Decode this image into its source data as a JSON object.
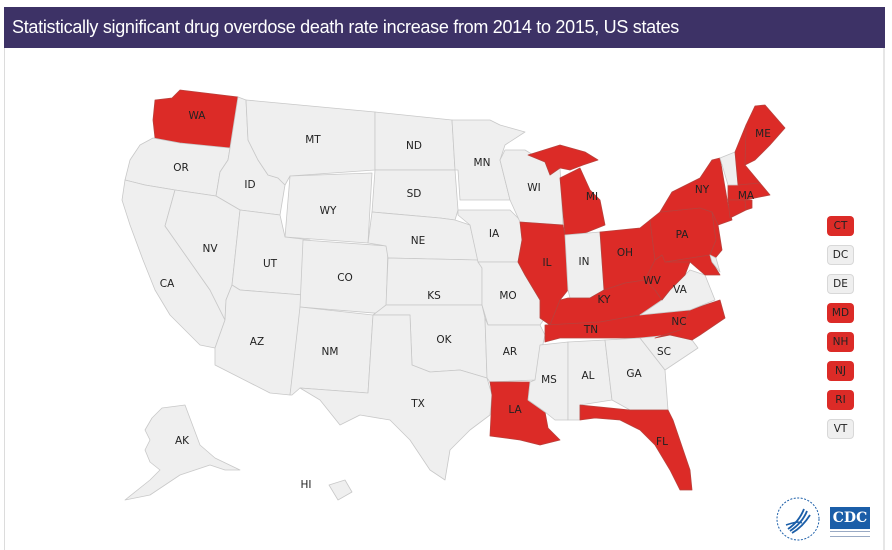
{
  "header": {
    "title": "Statistically significant drug overdose death rate increase from 2014 to 2015, US states"
  },
  "colors": {
    "header_bg": "#3d3266",
    "significant_increase": "#dc2b27",
    "no_significant_increase": "#efefef"
  },
  "map": {
    "states": [
      {
        "abbr": "WA",
        "significant": true
      },
      {
        "abbr": "OR",
        "significant": false
      },
      {
        "abbr": "CA",
        "significant": false
      },
      {
        "abbr": "ID",
        "significant": false
      },
      {
        "abbr": "NV",
        "significant": false
      },
      {
        "abbr": "MT",
        "significant": false
      },
      {
        "abbr": "WY",
        "significant": false
      },
      {
        "abbr": "UT",
        "significant": false
      },
      {
        "abbr": "AZ",
        "significant": false
      },
      {
        "abbr": "CO",
        "significant": false
      },
      {
        "abbr": "NM",
        "significant": false
      },
      {
        "abbr": "ND",
        "significant": false
      },
      {
        "abbr": "SD",
        "significant": false
      },
      {
        "abbr": "NE",
        "significant": false
      },
      {
        "abbr": "KS",
        "significant": false
      },
      {
        "abbr": "OK",
        "significant": false
      },
      {
        "abbr": "TX",
        "significant": false
      },
      {
        "abbr": "MN",
        "significant": false
      },
      {
        "abbr": "IA",
        "significant": false
      },
      {
        "abbr": "MO",
        "significant": false
      },
      {
        "abbr": "AR",
        "significant": false
      },
      {
        "abbr": "LA",
        "significant": true
      },
      {
        "abbr": "WI",
        "significant": false
      },
      {
        "abbr": "IL",
        "significant": true
      },
      {
        "abbr": "MI",
        "significant": true
      },
      {
        "abbr": "IN",
        "significant": false
      },
      {
        "abbr": "OH",
        "significant": true
      },
      {
        "abbr": "KY",
        "significant": true
      },
      {
        "abbr": "TN",
        "significant": true
      },
      {
        "abbr": "MS",
        "significant": false
      },
      {
        "abbr": "AL",
        "significant": false
      },
      {
        "abbr": "GA",
        "significant": false
      },
      {
        "abbr": "FL",
        "significant": true
      },
      {
        "abbr": "SC",
        "significant": false
      },
      {
        "abbr": "NC",
        "significant": true
      },
      {
        "abbr": "VA",
        "significant": false
      },
      {
        "abbr": "WV",
        "significant": true
      },
      {
        "abbr": "PA",
        "significant": true
      },
      {
        "abbr": "NY",
        "significant": true
      },
      {
        "abbr": "ME",
        "significant": true
      },
      {
        "abbr": "MA",
        "significant": true
      },
      {
        "abbr": "AK",
        "significant": false
      },
      {
        "abbr": "HI",
        "significant": false
      }
    ]
  },
  "legend": {
    "small_states": [
      {
        "abbr": "CT",
        "significant": true
      },
      {
        "abbr": "DC",
        "significant": false
      },
      {
        "abbr": "DE",
        "significant": false
      },
      {
        "abbr": "MD",
        "significant": true
      },
      {
        "abbr": "NH",
        "significant": true
      },
      {
        "abbr": "NJ",
        "significant": true
      },
      {
        "abbr": "RI",
        "significant": true
      },
      {
        "abbr": "VT",
        "significant": false
      }
    ]
  },
  "footer": {
    "logo_cdc": "CDC",
    "logo_hhs": "hhs-eagle-seal"
  }
}
